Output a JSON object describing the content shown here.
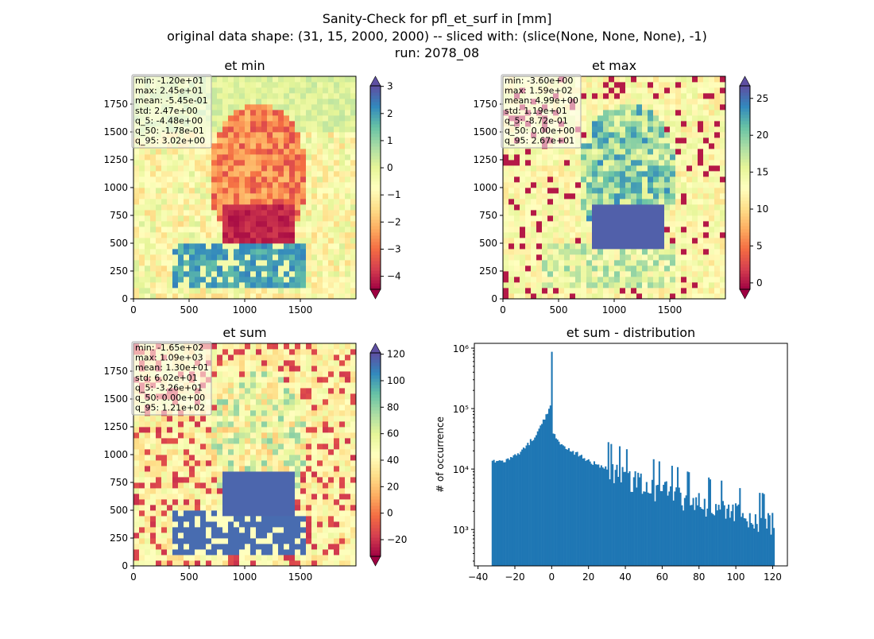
{
  "suptitle": {
    "line1": "Sanity-Check for pfl_et_surf in [mm]",
    "line2": "original data shape: (31, 15, 2000, 2000) -- sliced with: (slice(None, None, None), -1)",
    "line3": "run: 2078_08"
  },
  "colors": {
    "spectral": [
      "#9e0142",
      "#d53e4f",
      "#f46d43",
      "#fdae61",
      "#fee08b",
      "#ffffbf",
      "#e6f598",
      "#abdda4",
      "#66c2a5",
      "#3288bd",
      "#5e4fa2"
    ],
    "hist_bar": "#1f77b4"
  },
  "chart_data": [
    {
      "type": "heatmap",
      "title": "et min",
      "xlim": [
        0,
        2000
      ],
      "ylim": [
        0,
        2000
      ],
      "xticks": [
        "0",
        "500",
        "1000",
        "1500"
      ],
      "yticks": [
        "0",
        "250",
        "500",
        "750",
        "1000",
        "1250",
        "1500",
        "1750"
      ],
      "colorbar": {
        "min": -4.48,
        "max": 3.02,
        "extend": "both",
        "ticks": [
          "3",
          "2",
          "1",
          "0",
          "−1",
          "−2",
          "−3",
          "−4"
        ],
        "tick_values": [
          3,
          2,
          1,
          0,
          -1,
          -2,
          -3,
          -4
        ]
      },
      "stats": [
        "min: -1.20e+01",
        "max: 2.45e+01",
        "mean: -5.45e-01",
        "std: 2.47e+00",
        "q_5: -4.48e+00",
        "q_50: -1.78e-01",
        "q_95: 3.02e+00"
      ]
    },
    {
      "type": "heatmap",
      "title": "et max",
      "xlim": [
        0,
        2000
      ],
      "ylim": [
        0,
        2000
      ],
      "xticks": [
        "0",
        "500",
        "1000",
        "1500"
      ],
      "yticks": [
        "0",
        "250",
        "500",
        "750",
        "1000",
        "1250",
        "1500",
        "1750"
      ],
      "colorbar": {
        "min": -0.872,
        "max": 26.7,
        "extend": "both",
        "ticks": [
          "25",
          "20",
          "15",
          "10",
          "5",
          "0"
        ],
        "tick_values": [
          25,
          20,
          15,
          10,
          5,
          0
        ]
      },
      "stats": [
        "min: -3.60e+00",
        "max: 1.59e+02",
        "mean: 4.99e+00",
        "std: 1.19e+01",
        "q_5: -8.72e-01",
        "q_50: 0.00e+00",
        "q_95: 2.67e+01"
      ]
    },
    {
      "type": "heatmap",
      "title": "et sum",
      "xlim": [
        0,
        2000
      ],
      "ylim": [
        0,
        2000
      ],
      "xticks": [
        "0",
        "500",
        "1000",
        "1500"
      ],
      "yticks": [
        "0",
        "250",
        "500",
        "750",
        "1000",
        "1250",
        "1500",
        "1750"
      ],
      "colorbar": {
        "min": -32.6,
        "max": 121,
        "extend": "both",
        "ticks": [
          "120",
          "100",
          "80",
          "60",
          "40",
          "20",
          "0",
          "−20"
        ],
        "tick_values": [
          120,
          100,
          80,
          60,
          40,
          20,
          0,
          -20
        ]
      },
      "stats": [
        "min: -1.65e+02",
        "max: 1.09e+03",
        "mean: 1.30e+01",
        "std: 6.02e+01",
        "q_5: -3.26e+01",
        "q_50: 0.00e+00",
        "q_95: 1.21e+02"
      ]
    },
    {
      "type": "bar",
      "title": "et sum - distribution",
      "ylabel": "# of occurrence",
      "xlabel": "",
      "yscale": "log",
      "xlim": [
        -42,
        128
      ],
      "ylim": [
        250,
        1200000
      ],
      "xticks": [
        "−40",
        "−20",
        "0",
        "20",
        "40",
        "60",
        "80",
        "100",
        "120"
      ],
      "xtick_values": [
        -40,
        -20,
        0,
        20,
        40,
        60,
        80,
        100,
        120
      ],
      "yticks": [
        "10³",
        "10⁴",
        "10⁵",
        "10⁶"
      ],
      "ytick_values": [
        1000,
        10000,
        100000,
        1000000
      ],
      "bin_range": [
        -32.6,
        121
      ],
      "bins": 200,
      "peak": {
        "x": 0,
        "y": 870000
      }
    }
  ]
}
